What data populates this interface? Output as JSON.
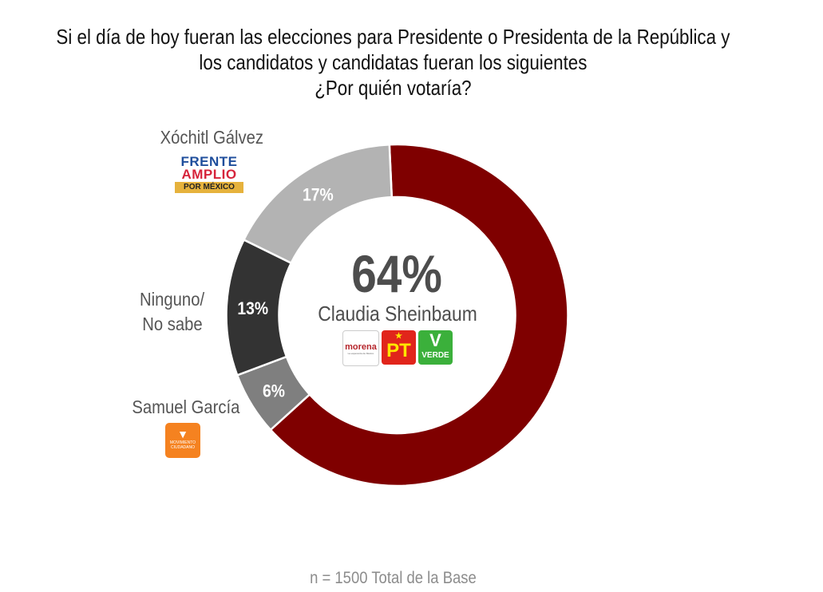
{
  "title": {
    "line1": "Si el día de hoy fueran las elecciones para Presidente o Presidenta de la República y",
    "line2": "los candidatos y candidatas fueran los siguientes",
    "line3": "¿Por quién votaría?"
  },
  "footnote": "n = 1500 Total de la Base",
  "labels": {
    "xochitl": "Xóchitl Gálvez",
    "ninguno_1": "Ninguno/",
    "ninguno_2": "No sabe",
    "samuel": "Samuel García"
  },
  "center": {
    "value": "64%",
    "name": "Claudia Sheinbaum"
  },
  "logos": {
    "frente_amplio": {
      "line1": "FRENTE",
      "line2": "AMPLIO",
      "line3": "POR MÉXICO"
    },
    "movimiento_ciudadano": {
      "line1": "MOVIMIENTO",
      "line2": "CIUDADANO",
      "icon": "eagle-icon"
    },
    "morena": {
      "name": "morena",
      "tagline": "La esperanza de México"
    },
    "pt": {
      "name": "PT",
      "icon": "star-icon"
    },
    "verde": {
      "name": "VERDE",
      "icon": "toucan-icon"
    }
  },
  "chart_data": {
    "type": "pie",
    "subtype": "donut",
    "title": "Si el día de hoy fueran las elecciones para Presidente o Presidenta de la República y los candidatos y candidatas fueran los siguientes ¿Por quién votaría?",
    "categories": [
      "Claudia Sheinbaum",
      "Samuel García",
      "Ninguno/ No sabe",
      "Xóchitl Gálvez"
    ],
    "values": [
      64,
      6,
      13,
      17
    ],
    "value_labels": [
      "64%",
      "6%",
      "13%",
      "17%"
    ],
    "colors": [
      "#7f0000",
      "#7f7f7f",
      "#333333",
      "#b3b3b3"
    ],
    "start_angle_deg": -2.6,
    "direction": "clockwise",
    "note": "n = 1500 Total de la Base",
    "legend": "none (labels placed beside segments)"
  }
}
